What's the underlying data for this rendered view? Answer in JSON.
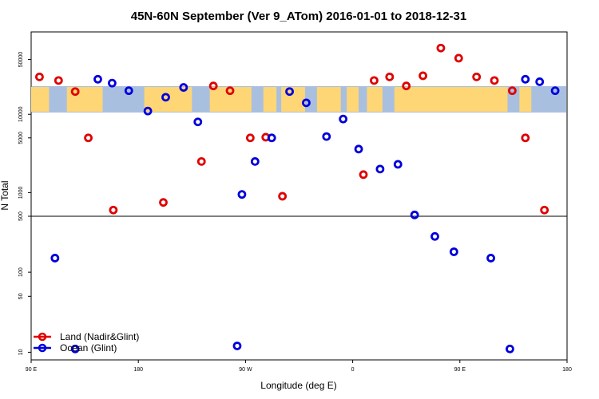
{
  "chart_data": {
    "type": "scatter",
    "title": "45N-60N September (Ver 9_ATom)   2016-01-01 to 2018-12-31",
    "xlabel": "Longitude (deg E)",
    "ylabel": "N Total",
    "x_ticks": [
      "90 E",
      "180",
      "90 W",
      "0",
      "90 E",
      "180"
    ],
    "x_tick_positions_deg": [
      90,
      180,
      270,
      360,
      450,
      540
    ],
    "xlim": [
      90,
      540
    ],
    "upper_panel": {
      "scale": "log",
      "ylim": [
        500,
        100000
      ],
      "y_ticks": [
        "500",
        "1000",
        "5000",
        "10000",
        "50000"
      ],
      "y_tick_values": [
        500,
        1000,
        5000,
        10000,
        50000
      ]
    },
    "lower_panel": {
      "scale": "log",
      "ylim": [
        9,
        500
      ],
      "y_ticks": [
        "10",
        "50",
        "100"
      ],
      "y_tick_values": [
        10,
        50,
        100
      ]
    },
    "map_band_colors": {
      "ocean": "#a9bfe0",
      "land": "#ffd675"
    },
    "legend_position": "bottom-left",
    "series": [
      {
        "name": "Land (Nadir&Glint)",
        "color": "#e00000",
        "points": [
          [
            97,
            30000
          ],
          [
            113,
            27000
          ],
          [
            127,
            19500
          ],
          [
            138,
            5000
          ],
          [
            159,
            600
          ],
          [
            201,
            750
          ],
          [
            233,
            2500
          ],
          [
            243,
            23000
          ],
          [
            257,
            20000
          ],
          [
            274,
            5000
          ],
          [
            287,
            5100
          ],
          [
            301,
            900
          ],
          [
            369,
            1700
          ],
          [
            378,
            27000
          ],
          [
            391,
            30000
          ],
          [
            405,
            23000
          ],
          [
            419,
            31000
          ],
          [
            434,
            70000
          ],
          [
            449,
            52000
          ],
          [
            464,
            30000
          ],
          [
            479,
            27000
          ],
          [
            494,
            20000
          ],
          [
            505,
            5000
          ],
          [
            521,
            600
          ]
        ]
      },
      {
        "name": "Ocean (Glint)",
        "color": "#0000dd",
        "points": [
          [
            110,
            150
          ],
          [
            127,
            11
          ],
          [
            146,
            28000
          ],
          [
            158,
            25000
          ],
          [
            172,
            20000
          ],
          [
            188,
            11000
          ],
          [
            203,
            16500
          ],
          [
            218,
            22000
          ],
          [
            230,
            8000
          ],
          [
            263,
            12
          ],
          [
            267,
            950
          ],
          [
            278,
            2500
          ],
          [
            292,
            5000
          ],
          [
            307,
            19500
          ],
          [
            321,
            14000
          ],
          [
            338,
            5200
          ],
          [
            352,
            8700
          ],
          [
            365,
            3600
          ],
          [
            383,
            2000
          ],
          [
            398,
            2300
          ],
          [
            412,
            520
          ],
          [
            429,
            280
          ],
          [
            445,
            180
          ],
          [
            476,
            150
          ],
          [
            492,
            11
          ],
          [
            505,
            28000
          ],
          [
            517,
            26000
          ],
          [
            530,
            20000
          ]
        ]
      }
    ]
  }
}
